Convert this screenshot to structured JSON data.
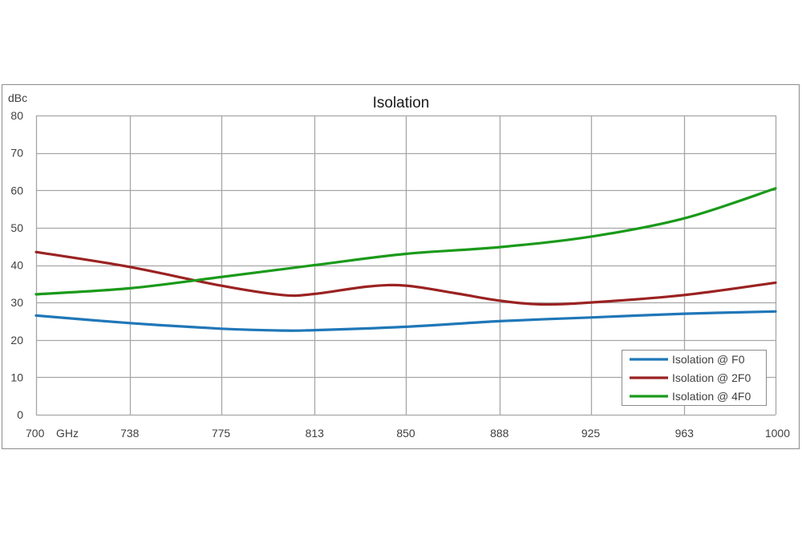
{
  "chart_data": {
    "type": "line",
    "title": "Isolation",
    "ylabel": "dBc",
    "xlabel": "GHz",
    "ylim": [
      0,
      80
    ],
    "yticks": [
      0,
      10,
      20,
      30,
      40,
      50,
      60,
      70,
      80
    ],
    "x": [
      700,
      738,
      775,
      813,
      850,
      888,
      925,
      963,
      1000
    ],
    "xtick_labels": [
      "700",
      "738",
      "775",
      "813",
      "850",
      "888",
      "925",
      "963",
      "1000"
    ],
    "grid": true,
    "legend_position": "bottom-right",
    "series": [
      {
        "name": "Isolation @ F0",
        "color": "#1f77b8",
        "points": [
          [
            700,
            26.5
          ],
          [
            738,
            24.5
          ],
          [
            775,
            23.0
          ],
          [
            800,
            22.5
          ],
          [
            813,
            22.6
          ],
          [
            850,
            23.5
          ],
          [
            888,
            25.0
          ],
          [
            925,
            26.0
          ],
          [
            963,
            27.0
          ],
          [
            1000,
            27.6
          ]
        ]
      },
      {
        "name": "Isolation @ 2F0",
        "color": "#9b2222",
        "points": [
          [
            700,
            43.5
          ],
          [
            738,
            39.5
          ],
          [
            775,
            34.5
          ],
          [
            800,
            32.0
          ],
          [
            813,
            32.3
          ],
          [
            835,
            34.3
          ],
          [
            850,
            34.5
          ],
          [
            870,
            32.5
          ],
          [
            888,
            30.5
          ],
          [
            905,
            29.5
          ],
          [
            925,
            30.0
          ],
          [
            963,
            32.0
          ],
          [
            1000,
            35.3
          ]
        ]
      },
      {
        "name": "Isolation @ 4F0",
        "color": "#1a9a1a",
        "points": [
          [
            700,
            32.2
          ],
          [
            738,
            33.8
          ],
          [
            775,
            36.8
          ],
          [
            813,
            40.0
          ],
          [
            850,
            43.0
          ],
          [
            888,
            44.8
          ],
          [
            925,
            47.6
          ],
          [
            963,
            52.5
          ],
          [
            1000,
            60.5
          ]
        ]
      }
    ]
  }
}
